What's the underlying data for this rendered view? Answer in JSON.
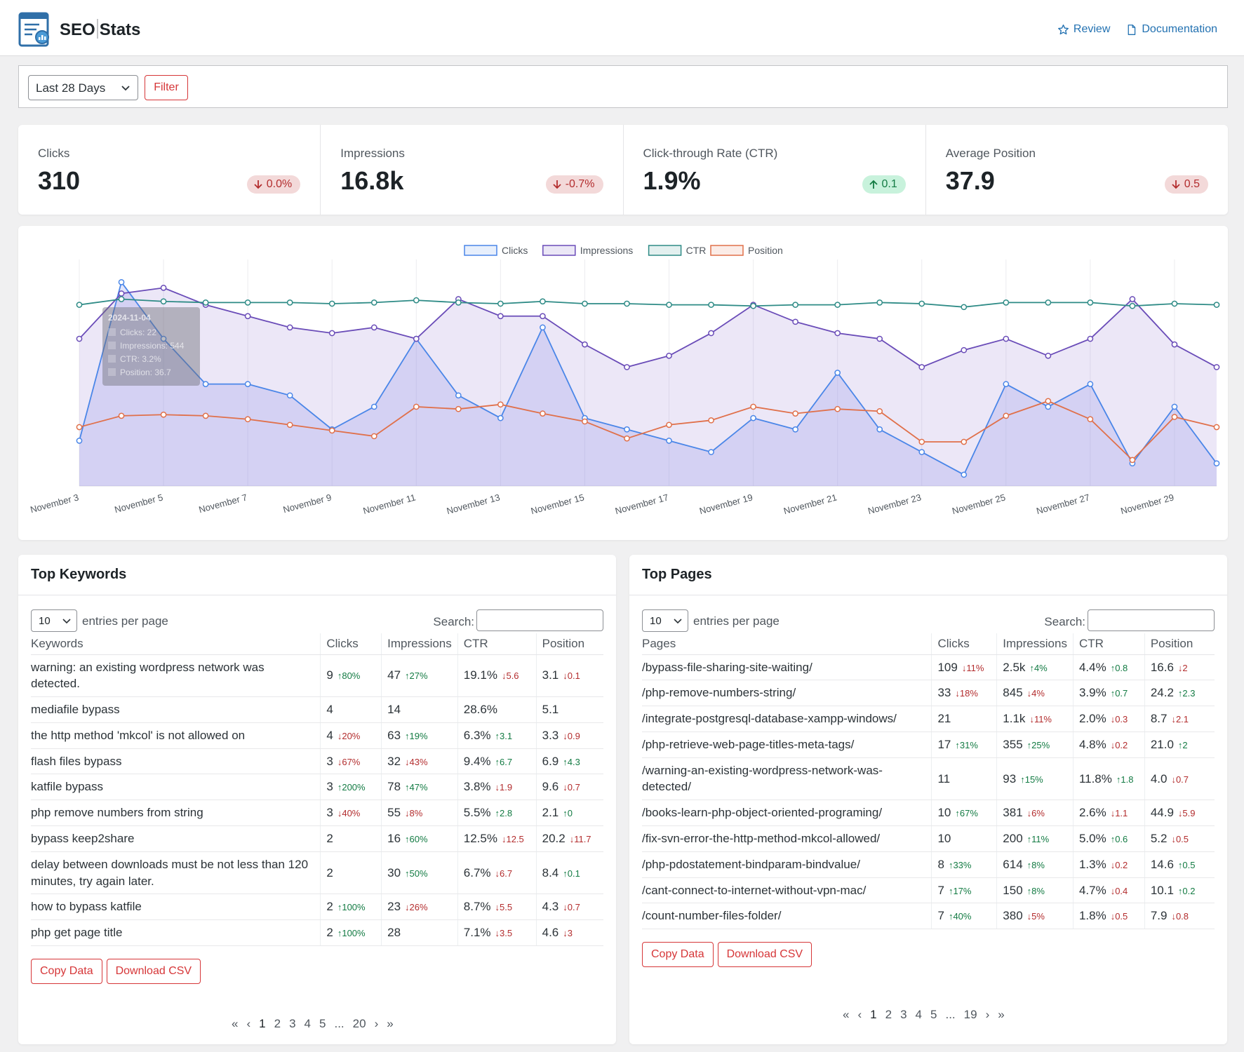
{
  "header": {
    "brand_left": "SEO",
    "brand_right": "Stats",
    "review": "Review",
    "documentation": "Documentation"
  },
  "filter": {
    "range_value": "Last 28 Days",
    "filter_label": "Filter"
  },
  "metrics": [
    {
      "label": "Clicks",
      "value": "310",
      "delta": "0.0%",
      "direction": "down"
    },
    {
      "label": "Impressions",
      "value": "16.8k",
      "delta": "-0.7%",
      "direction": "down"
    },
    {
      "label": "Click-through Rate (CTR)",
      "value": "1.9%",
      "delta": "0.1",
      "direction": "up"
    },
    {
      "label": "Average Position",
      "value": "37.9",
      "delta": "0.5",
      "direction": "down"
    }
  ],
  "colors": {
    "clicks": "#4a86e8",
    "impressions": "#6a4cb8",
    "ctr": "#2e8b86",
    "position": "#e0704a",
    "up": "#137b43",
    "down": "#b32d2e",
    "accent": "#d63638"
  },
  "chart_data": {
    "type": "line",
    "legend": [
      "Clicks",
      "Impressions",
      "CTR",
      "Position"
    ],
    "x_tick_labels": [
      "November 3",
      "November 5",
      "November 7",
      "November 9",
      "November 11",
      "November 13",
      "November 15",
      "November 17",
      "November 19",
      "November 21",
      "November 23",
      "November 25",
      "November 27",
      "November 29"
    ],
    "x": [
      "Nov 3",
      "Nov 4",
      "Nov 5",
      "Nov 6",
      "Nov 7",
      "Nov 8",
      "Nov 9",
      "Nov 10",
      "Nov 11",
      "Nov 12",
      "Nov 13",
      "Nov 14",
      "Nov 15",
      "Nov 16",
      "Nov 17",
      "Nov 18",
      "Nov 19",
      "Nov 20",
      "Nov 21",
      "Nov 22",
      "Nov 23",
      "Nov 24",
      "Nov 25",
      "Nov 26",
      "Nov 27",
      "Nov 28",
      "Nov 29",
      "Nov 30"
    ],
    "series": [
      {
        "name": "Clicks",
        "values": [
          4,
          18,
          13,
          9,
          9,
          8,
          5,
          7,
          13,
          8,
          6,
          14,
          6,
          5,
          4,
          3,
          6,
          5,
          10,
          5,
          3,
          1,
          9,
          7,
          9,
          2,
          7,
          2
        ]
      },
      {
        "name": "Impressions",
        "values": [
          13,
          17,
          17.5,
          16,
          15,
          14,
          13.5,
          14,
          13,
          16.5,
          15,
          15,
          12.5,
          10.5,
          11.5,
          13.5,
          16,
          14.5,
          13.5,
          13,
          10.5,
          12,
          13,
          11.5,
          13,
          16.5,
          12.5,
          10.5
        ]
      },
      {
        "name": "CTR",
        "values": [
          16,
          16.5,
          16.3,
          16.2,
          16.2,
          16.2,
          16.1,
          16.2,
          16.4,
          16.2,
          16.1,
          16.3,
          16.1,
          16.1,
          16,
          16,
          15.9,
          16,
          16,
          16.2,
          16.1,
          15.8,
          16.2,
          16.2,
          16.2,
          15.9,
          16.1,
          16
        ]
      },
      {
        "name": "Position",
        "values": [
          5.2,
          6.2,
          6.3,
          6.2,
          5.9,
          5.4,
          4.9,
          4.4,
          7,
          6.8,
          7.2,
          6.4,
          5.7,
          4.2,
          5.4,
          5.8,
          7,
          6.4,
          6.8,
          6.6,
          3.9,
          3.9,
          6.2,
          7.5,
          5.9,
          2.3,
          6.1,
          5.2
        ]
      }
    ],
    "y_hidden": true,
    "tooltip": {
      "title": "2024-11-04",
      "lines": [
        "Clicks: 22",
        "Impressions: 544",
        "CTR: 3.2%",
        "Position: 36.7"
      ]
    }
  },
  "keywords": {
    "title": "Top Keywords",
    "per_page": "10",
    "per_page_label": "entries per page",
    "search_label": "Search:",
    "columns": [
      "Keywords",
      "Clicks",
      "Impressions",
      "CTR",
      "Position"
    ],
    "rows": [
      {
        "name": "warning: an existing wordpress network was detected.",
        "clicks": "9",
        "clicks_d": "↑80%",
        "clicks_dir": "up",
        "impr": "47",
        "impr_d": "↑27%",
        "impr_dir": "up",
        "ctr": "19.1%",
        "ctr_d": "↓5.6",
        "ctr_dir": "down",
        "pos": "3.1",
        "pos_d": "↓0.1",
        "pos_dir": "down"
      },
      {
        "name": "mediafile bypass",
        "clicks": "4",
        "clicks_d": "",
        "clicks_dir": "",
        "impr": "14",
        "impr_d": "",
        "impr_dir": "",
        "ctr": "28.6%",
        "ctr_d": "",
        "ctr_dir": "",
        "pos": "5.1",
        "pos_d": "",
        "pos_dir": ""
      },
      {
        "name": "the http method 'mkcol' is not allowed on",
        "clicks": "4",
        "clicks_d": "↓20%",
        "clicks_dir": "down",
        "impr": "63",
        "impr_d": "↑19%",
        "impr_dir": "up",
        "ctr": "6.3%",
        "ctr_d": "↑3.1",
        "ctr_dir": "up",
        "pos": "3.3",
        "pos_d": "↓0.9",
        "pos_dir": "down"
      },
      {
        "name": "flash files bypass",
        "clicks": "3",
        "clicks_d": "↓67%",
        "clicks_dir": "down",
        "impr": "32",
        "impr_d": "↓43%",
        "impr_dir": "down",
        "ctr": "9.4%",
        "ctr_d": "↑6.7",
        "ctr_dir": "up",
        "pos": "6.9",
        "pos_d": "↑4.3",
        "pos_dir": "up"
      },
      {
        "name": "katfile bypass",
        "clicks": "3",
        "clicks_d": "↑200%",
        "clicks_dir": "up",
        "impr": "78",
        "impr_d": "↑47%",
        "impr_dir": "up",
        "ctr": "3.8%",
        "ctr_d": "↓1.9",
        "ctr_dir": "down",
        "pos": "9.6",
        "pos_d": "↓0.7",
        "pos_dir": "down"
      },
      {
        "name": "php remove numbers from string",
        "clicks": "3",
        "clicks_d": "↓40%",
        "clicks_dir": "down",
        "impr": "55",
        "impr_d": "↓8%",
        "impr_dir": "down",
        "ctr": "5.5%",
        "ctr_d": "↑2.8",
        "ctr_dir": "up",
        "pos": "2.1",
        "pos_d": "↑0",
        "pos_dir": "up"
      },
      {
        "name": "bypass keep2share",
        "clicks": "2",
        "clicks_d": "",
        "clicks_dir": "",
        "impr": "16",
        "impr_d": "↑60%",
        "impr_dir": "up",
        "ctr": "12.5%",
        "ctr_d": "↓12.5",
        "ctr_dir": "down",
        "pos": "20.2",
        "pos_d": "↓11.7",
        "pos_dir": "down"
      },
      {
        "name": "delay between downloads must be not less than 120 minutes, try again later.",
        "clicks": "2",
        "clicks_d": "",
        "clicks_dir": "",
        "impr": "30",
        "impr_d": "↑50%",
        "impr_dir": "up",
        "ctr": "6.7%",
        "ctr_d": "↓6.7",
        "ctr_dir": "down",
        "pos": "8.4",
        "pos_d": "↑0.1",
        "pos_dir": "up"
      },
      {
        "name": "how to bypass katfile",
        "clicks": "2",
        "clicks_d": "↑100%",
        "clicks_dir": "up",
        "impr": "23",
        "impr_d": "↓26%",
        "impr_dir": "down",
        "ctr": "8.7%",
        "ctr_d": "↓5.5",
        "ctr_dir": "down",
        "pos": "4.3",
        "pos_d": "↓0.7",
        "pos_dir": "down"
      },
      {
        "name": "php get page title",
        "clicks": "2",
        "clicks_d": "↑100%",
        "clicks_dir": "up",
        "impr": "28",
        "impr_d": "",
        "impr_dir": "",
        "ctr": "7.1%",
        "ctr_d": "↓3.5",
        "ctr_dir": "down",
        "pos": "4.6",
        "pos_d": "↓3",
        "pos_dir": "down"
      }
    ],
    "copy_label": "Copy Data",
    "download_label": "Download CSV",
    "pager": [
      "«",
      "‹",
      "1",
      "2",
      "3",
      "4",
      "5",
      "...",
      "20",
      "›",
      "»"
    ]
  },
  "pages": {
    "title": "Top Pages",
    "per_page": "10",
    "per_page_label": "entries per page",
    "search_label": "Search:",
    "columns": [
      "Pages",
      "Clicks",
      "Impressions",
      "CTR",
      "Position"
    ],
    "rows": [
      {
        "name": "/bypass-file-sharing-site-waiting/",
        "clicks": "109",
        "clicks_d": "↓11%",
        "clicks_dir": "down",
        "impr": "2.5k",
        "impr_d": "↑4%",
        "impr_dir": "up",
        "ctr": "4.4%",
        "ctr_d": "↑0.8",
        "ctr_dir": "up",
        "pos": "16.6",
        "pos_d": "↓2",
        "pos_dir": "down"
      },
      {
        "name": "/php-remove-numbers-string/",
        "clicks": "33",
        "clicks_d": "↓18%",
        "clicks_dir": "down",
        "impr": "845",
        "impr_d": "↓4%",
        "impr_dir": "down",
        "ctr": "3.9%",
        "ctr_d": "↑0.7",
        "ctr_dir": "up",
        "pos": "24.2",
        "pos_d": "↑2.3",
        "pos_dir": "up"
      },
      {
        "name": "/integrate-postgresql-database-xampp-windows/",
        "clicks": "21",
        "clicks_d": "",
        "clicks_dir": "",
        "impr": "1.1k",
        "impr_d": "↓11%",
        "impr_dir": "down",
        "ctr": "2.0%",
        "ctr_d": "↓0.3",
        "ctr_dir": "down",
        "pos": "8.7",
        "pos_d": "↓2.1",
        "pos_dir": "down"
      },
      {
        "name": "/php-retrieve-web-page-titles-meta-tags/",
        "clicks": "17",
        "clicks_d": "↑31%",
        "clicks_dir": "up",
        "impr": "355",
        "impr_d": "↑25%",
        "impr_dir": "up",
        "ctr": "4.8%",
        "ctr_d": "↓0.2",
        "ctr_dir": "down",
        "pos": "21.0",
        "pos_d": "↑2",
        "pos_dir": "up"
      },
      {
        "name": "/warning-an-existing-wordpress-network-was-detected/",
        "clicks": "11",
        "clicks_d": "",
        "clicks_dir": "",
        "impr": "93",
        "impr_d": "↑15%",
        "impr_dir": "up",
        "ctr": "11.8%",
        "ctr_d": "↑1.8",
        "ctr_dir": "up",
        "pos": "4.0",
        "pos_d": "↓0.7",
        "pos_dir": "down"
      },
      {
        "name": "/books-learn-php-object-oriented-programing/",
        "clicks": "10",
        "clicks_d": "↑67%",
        "clicks_dir": "up",
        "impr": "381",
        "impr_d": "↓6%",
        "impr_dir": "down",
        "ctr": "2.6%",
        "ctr_d": "↓1.1",
        "ctr_dir": "down",
        "pos": "44.9",
        "pos_d": "↓5.9",
        "pos_dir": "down"
      },
      {
        "name": "/fix-svn-error-the-http-method-mkcol-allowed/",
        "clicks": "10",
        "clicks_d": "",
        "clicks_dir": "",
        "impr": "200",
        "impr_d": "↑11%",
        "impr_dir": "up",
        "ctr": "5.0%",
        "ctr_d": "↑0.6",
        "ctr_dir": "up",
        "pos": "5.2",
        "pos_d": "↓0.5",
        "pos_dir": "down"
      },
      {
        "name": "/php-pdostatement-bindparam-bindvalue/",
        "clicks": "8",
        "clicks_d": "↑33%",
        "clicks_dir": "up",
        "impr": "614",
        "impr_d": "↑8%",
        "impr_dir": "up",
        "ctr": "1.3%",
        "ctr_d": "↓0.2",
        "ctr_dir": "down",
        "pos": "14.6",
        "pos_d": "↑0.5",
        "pos_dir": "up"
      },
      {
        "name": "/cant-connect-to-internet-without-vpn-mac/",
        "clicks": "7",
        "clicks_d": "↑17%",
        "clicks_dir": "up",
        "impr": "150",
        "impr_d": "↑8%",
        "impr_dir": "up",
        "ctr": "4.7%",
        "ctr_d": "↓0.4",
        "ctr_dir": "down",
        "pos": "10.1",
        "pos_d": "↑0.2",
        "pos_dir": "up"
      },
      {
        "name": "/count-number-files-folder/",
        "clicks": "7",
        "clicks_d": "↑40%",
        "clicks_dir": "up",
        "impr": "380",
        "impr_d": "↓5%",
        "impr_dir": "down",
        "ctr": "1.8%",
        "ctr_d": "↓0.5",
        "ctr_dir": "down",
        "pos": "7.9",
        "pos_d": "↓0.8",
        "pos_dir": "down"
      }
    ],
    "copy_label": "Copy Data",
    "download_label": "Download CSV",
    "pager": [
      "«",
      "‹",
      "1",
      "2",
      "3",
      "4",
      "5",
      "...",
      "19",
      "›",
      "»"
    ]
  }
}
